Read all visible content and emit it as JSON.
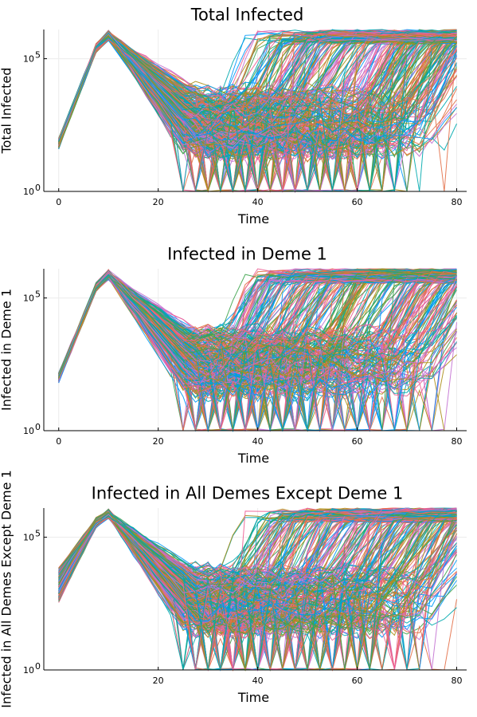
{
  "chart_data": [
    {
      "type": "line",
      "title": "Total Infected",
      "xlabel": "Time",
      "ylabel": "Total Infected",
      "xlim": [
        -3,
        82
      ],
      "xticks": [
        0,
        20,
        40,
        60,
        80
      ],
      "yscale": "log10",
      "ylim_log10": [
        0,
        6.1
      ],
      "yticks": [
        {
          "label": "10",
          "exp": "0",
          "log10": 0
        },
        {
          "label": "10",
          "exp": "5",
          "log10": 5
        }
      ],
      "grid": true,
      "legend": "none",
      "series_count": 300,
      "peak": {
        "x": 10,
        "y_log10": 6.0
      },
      "start": {
        "x": 0,
        "y_log10": 1.8
      }
    },
    {
      "type": "line",
      "title": "Infected in Deme 1",
      "xlabel": "Time",
      "ylabel": "Infected in Deme 1",
      "xlim": [
        -3,
        82
      ],
      "xticks": [
        0,
        20,
        40,
        60,
        80
      ],
      "yscale": "log10",
      "ylim_log10": [
        0,
        6.1
      ],
      "yticks": [
        {
          "label": "10",
          "exp": "0",
          "log10": 0
        },
        {
          "label": "10",
          "exp": "5",
          "log10": 5
        }
      ],
      "grid": true,
      "legend": "none",
      "series_count": 300,
      "peak": {
        "x": 10,
        "y_log10": 6.0
      },
      "start": {
        "x": 0,
        "y_log10": 2.0
      }
    },
    {
      "type": "line",
      "title": "Infected in All Demes Except Deme 1",
      "xlabel": "Time",
      "ylabel": "Infected in All Demes Except Deme 1",
      "xlim": [
        -3,
        82
      ],
      "xticks": [
        20,
        40,
        60,
        80
      ],
      "yscale": "log10",
      "ylim_log10": [
        0,
        6.1
      ],
      "yticks": [
        {
          "label": "10",
          "exp": "0",
          "log10": 0
        },
        {
          "label": "10",
          "exp": "5",
          "log10": 5
        }
      ],
      "grid": true,
      "legend": "none",
      "series_count": 300,
      "peak": {
        "x": 10,
        "y_log10": 6.0
      },
      "start": {
        "x": 0,
        "y_log10": 3.2
      }
    }
  ],
  "colors": [
    "#009AFA",
    "#E36F47",
    "#3EA44E",
    "#C371D2",
    "#AC8E18",
    "#00AAAE",
    "#ED5E93"
  ]
}
